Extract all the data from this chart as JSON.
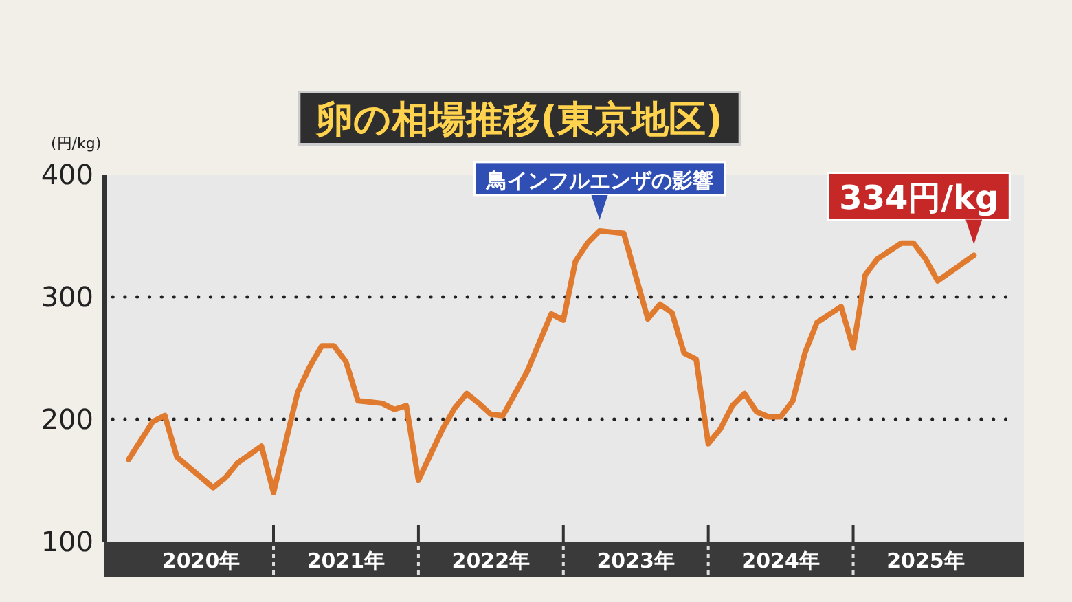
{
  "chart_data": {
    "type": "line",
    "title": "卵の相場推移(東京地区)",
    "ylabel": "(円/kg)",
    "series": [
      {
        "color": "#e07a2e",
        "x": [
          "2020-01",
          "2020-03",
          "2020-04",
          "2020-05",
          "2020-08",
          "2020-09",
          "2020-10",
          "2020-12",
          "2021-01",
          "2021-03",
          "2021-04",
          "2021-05",
          "2021-06",
          "2021-07",
          "2021-08",
          "2021-09",
          "2021-10",
          "2021-11",
          "2021-12",
          "2022-01",
          "2022-03",
          "2022-04",
          "2022-05",
          "2022-06",
          "2022-07",
          "2022-08",
          "2022-10",
          "2022-12",
          "2023-01",
          "2023-02",
          "2023-03",
          "2023-04",
          "2023-06",
          "2023-08",
          "2023-09",
          "2023-10",
          "2023-11",
          "2023-12",
          "2024-01",
          "2024-02",
          "2024-03",
          "2024-04",
          "2024-05",
          "2024-06",
          "2024-07",
          "2024-08",
          "2024-09",
          "2024-10",
          "2024-12",
          "2025-01",
          "2025-02",
          "2025-03",
          "2025-05",
          "2025-06",
          "2025-07",
          "2025-08",
          "2025-11"
        ],
        "values": [
          167,
          198,
          203,
          169,
          144,
          152,
          164,
          178,
          140,
          222,
          243,
          260,
          260,
          247,
          215,
          214,
          213,
          208,
          211,
          150,
          192,
          209,
          221,
          213,
          204,
          203,
          239,
          286,
          281,
          329,
          344,
          354,
          352,
          282,
          294,
          287,
          254,
          249,
          180,
          192,
          211,
          221,
          206,
          202,
          202,
          215,
          254,
          279,
          292,
          258,
          318,
          331,
          344,
          344,
          331,
          313,
          334
        ]
      }
    ],
    "xlim": [
      "2019-11",
      "2026-02"
    ],
    "xticks": [
      {
        "value": "2020-07",
        "label": "2020年"
      },
      {
        "value": "2021-01",
        "label": null
      },
      {
        "value": "2021-07",
        "label": "2021年"
      },
      {
        "value": "2022-01",
        "label": null
      },
      {
        "value": "2022-07",
        "label": "2022年"
      },
      {
        "value": "2023-01",
        "label": null
      },
      {
        "value": "2023-07",
        "label": "2023年"
      },
      {
        "value": "2024-01",
        "label": null
      },
      {
        "value": "2024-07",
        "label": "2024年"
      },
      {
        "value": "2025-01",
        "label": null
      },
      {
        "value": "2025-07",
        "label": "2025年"
      }
    ],
    "ylim": [
      100,
      400
    ],
    "yticks": [
      100,
      200,
      300,
      400
    ],
    "grid": "y",
    "line_style": "solid",
    "marker": "none",
    "annotations": [
      {
        "text": "鳥インフルエンザの影響",
        "x": "2023-04",
        "y": 354
      },
      {
        "text": "334円/kg",
        "x": "2025-11",
        "y": 334
      }
    ]
  }
}
